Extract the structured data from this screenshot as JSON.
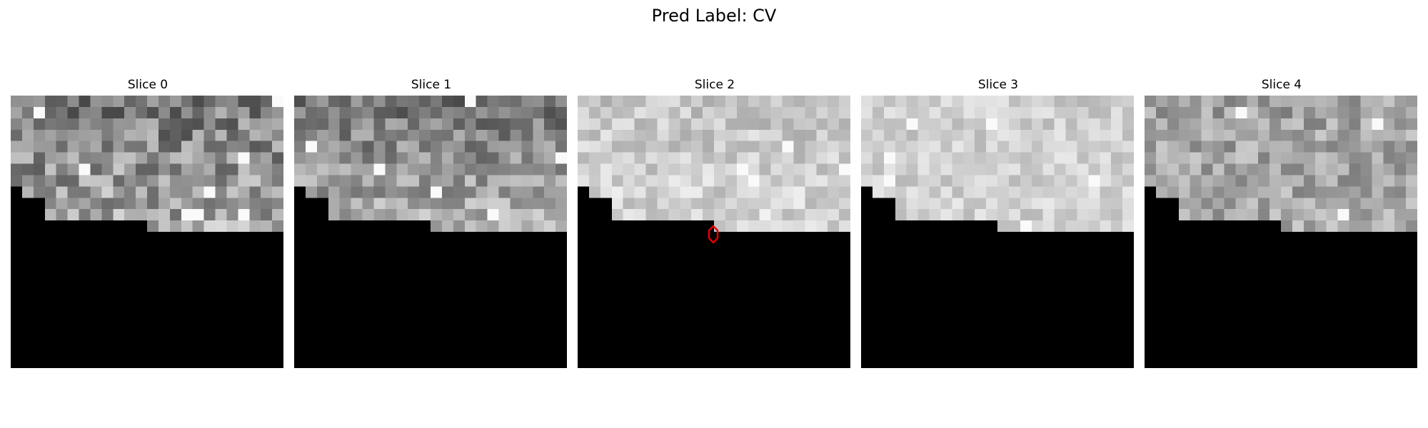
{
  "figure": {
    "title": "Pred Label: CV"
  },
  "panels": [
    {
      "label": "Slice 0"
    },
    {
      "label": "Slice 1"
    },
    {
      "label": "Slice 2"
    },
    {
      "label": "Slice 3"
    },
    {
      "label": "Slice 4"
    }
  ],
  "image": {
    "colormap": "gray",
    "background_color": "#000000",
    "marker_color": "#e60000",
    "marker_slice": "Slice 2"
  }
}
